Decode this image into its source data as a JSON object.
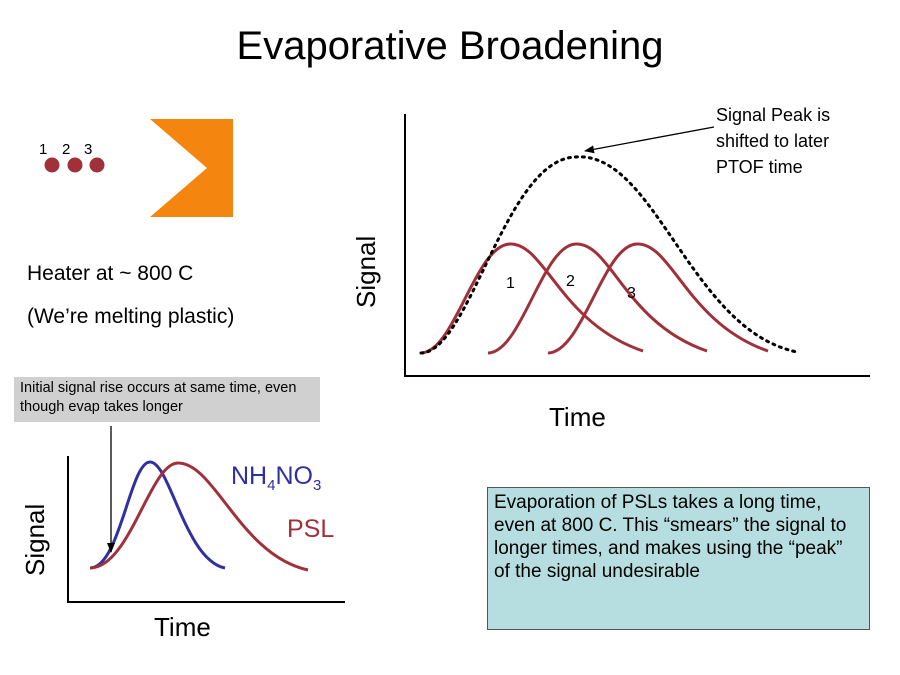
{
  "title": "Evaporative Broadening",
  "particles": {
    "labels": [
      "1",
      "2",
      "3"
    ],
    "color": "#a0313b"
  },
  "heater": {
    "color": "#f4860f",
    "line1": "Heater at ~ 800 C",
    "line2": "(We’re melting plastic)"
  },
  "main_plot": {
    "ylabel": "Signal",
    "xlabel": "Time",
    "peak_labels": [
      "1",
      "2",
      "3"
    ],
    "peak_note": [
      "Signal Peak is",
      "shifted to later",
      "PTOF time"
    ],
    "curve_color": "#a0313b"
  },
  "small_plot": {
    "ylabel": "Signal",
    "xlabel": "Time",
    "nh4no3": {
      "base": "NH",
      "sub1": "4",
      "mid": "NO",
      "sub2": "3",
      "color": "#3030a0"
    },
    "psl": {
      "label": "PSL",
      "color": "#a0313b"
    }
  },
  "callout_left": {
    "text": "Initial signal rise occurs at same time, even though evap takes longer",
    "bg": "#d0d0d0"
  },
  "callout_right": {
    "text": "Evaporation of PSLs takes a long time, even at 800 C.  This “smears” the signal to longer times, and makes using the “peak” of the signal undesirable",
    "bg": "#b6dde0"
  }
}
